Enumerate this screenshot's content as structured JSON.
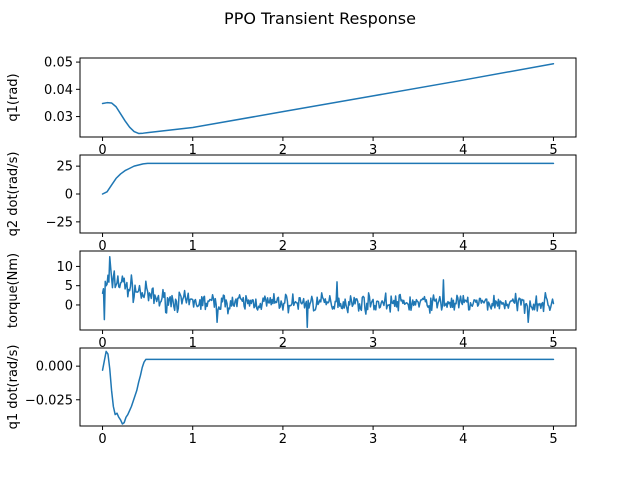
{
  "figure": {
    "title": "PPO Transient Response",
    "line_color": "#1f77b4"
  },
  "chart_data": [
    {
      "type": "line",
      "ylabel": "q1(rad)",
      "xlim": [
        -0.25,
        5.25
      ],
      "ylim": [
        0.0225,
        0.0515
      ],
      "xticks": [
        0,
        1,
        2,
        3,
        4,
        5
      ],
      "yticks": [
        0.03,
        0.04,
        0.05
      ],
      "ytick_labels": [
        "0.03",
        "0.04",
        "0.05"
      ],
      "series": [
        {
          "kind": "points",
          "x": [
            0,
            0.05,
            0.1,
            0.15,
            0.2,
            0.25,
            0.3,
            0.35,
            0.4,
            0.45,
            0.5,
            1,
            2,
            3,
            4,
            5
          ],
          "y": [
            0.0348,
            0.0351,
            0.035,
            0.0336,
            0.031,
            0.0284,
            0.0261,
            0.0245,
            0.0238,
            0.0239,
            0.0241,
            0.026,
            0.0318,
            0.0376,
            0.0434,
            0.0494
          ]
        }
      ]
    },
    {
      "type": "line",
      "ylabel": "q2 dot(rad/s)",
      "xlim": [
        -0.25,
        5.25
      ],
      "ylim": [
        -35,
        35
      ],
      "xticks": [
        0,
        1,
        2,
        3,
        4,
        5
      ],
      "yticks": [
        -25,
        0,
        25
      ],
      "ytick_labels": [
        "−25",
        "0",
        "25"
      ],
      "series": [
        {
          "kind": "points",
          "x": [
            0,
            0.05,
            0.1,
            0.15,
            0.2,
            0.25,
            0.3,
            0.35,
            0.4,
            0.45,
            0.5,
            1,
            2,
            3,
            4,
            5
          ],
          "y": [
            0,
            2,
            8,
            14,
            18,
            21,
            23,
            25,
            26,
            27,
            27.5,
            27.5,
            27.5,
            27.5,
            27.5,
            27.5
          ]
        }
      ]
    },
    {
      "type": "line",
      "ylabel": "torque(Nm)",
      "xlim": [
        -0.25,
        5.25
      ],
      "ylim": [
        -6.5,
        14
      ],
      "xticks": [
        0,
        1,
        2,
        3,
        4,
        5
      ],
      "yticks": [
        0,
        5,
        10
      ],
      "ytick_labels": [
        "0",
        "5",
        "10"
      ],
      "series": [
        {
          "kind": "noisy",
          "x_start": 0,
          "x_end": 5,
          "n_points": 500,
          "seed": 7,
          "envelope": [
            {
              "x": 0,
              "mean": 4.0,
              "amp": 5.0
            },
            {
              "x": 0.1,
              "mean": 7.0,
              "amp": 5.0
            },
            {
              "x": 0.3,
              "mean": 4.5,
              "amp": 4.5
            },
            {
              "x": 0.6,
              "mean": 1.5,
              "amp": 4.0
            },
            {
              "x": 1.0,
              "mean": 0.6,
              "amp": 3.5
            },
            {
              "x": 5.0,
              "mean": 0.4,
              "amp": 3.2
            }
          ],
          "peaks": [
            {
              "x": 0.08,
              "y": 12.5
            },
            {
              "x": 0.02,
              "y": -3.8
            },
            {
              "x": 2.27,
              "y": -5.8
            },
            {
              "x": 1.27,
              "y": -4.5
            },
            {
              "x": 2.6,
              "y": 6.0
            },
            {
              "x": 3.78,
              "y": 6.5
            },
            {
              "x": 4.72,
              "y": -4.5
            }
          ]
        }
      ]
    },
    {
      "type": "line",
      "ylabel": "q1 dot(rad/s)",
      "xlim": [
        -0.25,
        5.25
      ],
      "ylim": [
        -0.0445,
        0.0135
      ],
      "xticks": [
        0,
        1,
        2,
        3,
        4,
        5
      ],
      "yticks": [
        -0.025,
        0.0
      ],
      "ytick_labels": [
        "−0.025",
        "0.000"
      ],
      "xtick_labels": [
        "0",
        "1",
        "2",
        "3",
        "4",
        "5"
      ],
      "series": [
        {
          "kind": "points",
          "x": [
            0,
            0.02,
            0.04,
            0.06,
            0.08,
            0.1,
            0.12,
            0.14,
            0.16,
            0.18,
            0.2,
            0.22,
            0.24,
            0.26,
            0.28,
            0.3,
            0.32,
            0.34,
            0.36,
            0.38,
            0.4,
            0.42,
            0.44,
            0.46,
            0.48,
            0.5,
            0.52,
            1,
            2,
            3,
            4,
            5
          ],
          "y": [
            -0.003,
            0.004,
            0.011,
            0.009,
            -0.002,
            -0.018,
            -0.03,
            -0.036,
            -0.035,
            -0.038,
            -0.04,
            -0.043,
            -0.042,
            -0.038,
            -0.036,
            -0.033,
            -0.03,
            -0.026,
            -0.022,
            -0.018,
            -0.012,
            -0.007,
            -0.001,
            0.003,
            0.005,
            0.005,
            0.005,
            0.005,
            0.005,
            0.005,
            0.005,
            0.005
          ]
        }
      ]
    }
  ]
}
